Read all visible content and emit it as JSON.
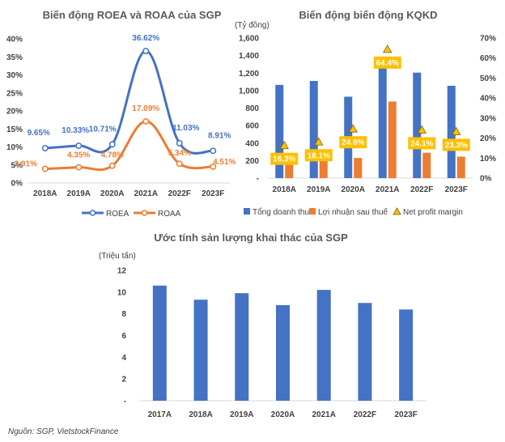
{
  "chart_data": [
    {
      "type": "line",
      "title": "Biến động ROEA và ROAA của SGP",
      "categories": [
        "2018A",
        "2019A",
        "2020A",
        "2021A",
        "2022F",
        "2023F"
      ],
      "y_ticks": [
        "0%",
        "5%",
        "10%",
        "15%",
        "20%",
        "25%",
        "30%",
        "35%",
        "40%"
      ],
      "ylim": [
        0,
        40
      ],
      "grid": false,
      "legend_position": "bottom",
      "series": [
        {
          "name": "ROEA",
          "color": "#4472C4",
          "values": [
            9.65,
            10.33,
            10.71,
            36.62,
            11.03,
            8.91
          ],
          "labels": [
            "9.65%",
            "10.33%",
            "10.71%",
            "36.62%",
            "11.03%",
            "8.91%"
          ]
        },
        {
          "name": "ROAA",
          "color": "#ED7D31",
          "values": [
            3.91,
            4.35,
            4.78,
            17.09,
            5.34,
            4.51
          ],
          "labels": [
            "3.91%",
            "4.35%",
            "4.78%",
            "17.09%",
            "5.34%",
            "4.51%"
          ]
        }
      ]
    },
    {
      "type": "bar",
      "title": "Biến động biến động KQKD",
      "unit_label": "(Tỷ đồng)",
      "categories": [
        "2018A",
        "2019A",
        "2020A",
        "2021A",
        "2022F",
        "2023F"
      ],
      "y_ticks": [
        "-",
        "200",
        "400",
        "600",
        "800",
        "1,000",
        "1,200",
        "1,400",
        "1,600"
      ],
      "ylim": [
        0,
        1600
      ],
      "y2_ticks": [
        "0%",
        "10%",
        "20%",
        "30%",
        "40%",
        "50%",
        "60%",
        "70%"
      ],
      "y2lim": [
        0,
        70
      ],
      "grid": false,
      "legend_position": "bottom",
      "series": [
        {
          "name": "Tổng doanh thu",
          "color": "#4472C4",
          "values": [
            1065,
            1110,
            930,
            1360,
            1205,
            1055
          ]
        },
        {
          "name": "Lợi nhuận sau thuế",
          "color": "#ED7D31",
          "values": [
            175,
            200,
            230,
            875,
            290,
            245
          ]
        },
        {
          "name": "Net profit margin",
          "color": "#FFC000",
          "axis": "right",
          "values": [
            16.3,
            18.1,
            24.6,
            64.4,
            24.1,
            23.3
          ],
          "labels": [
            "16.3%",
            "18.1%",
            "24.6%",
            "64.4%",
            "24.1%",
            "23.3%"
          ]
        }
      ]
    },
    {
      "type": "bar",
      "title": "Ước tính sản lượng khai thác của SGP",
      "unit_label": "(Triệu tấn)",
      "categories": [
        "2017A",
        "2018A",
        "2019A",
        "2020A",
        "2021A",
        "2022F",
        "2023F"
      ],
      "y_ticks": [
        "-",
        "2",
        "4",
        "6",
        "8",
        "10",
        "12"
      ],
      "ylim": [
        0,
        12
      ],
      "grid": false,
      "series": [
        {
          "name": "",
          "color": "#4472C4",
          "values": [
            10.6,
            9.3,
            9.9,
            8.8,
            10.2,
            9.0,
            8.4
          ]
        }
      ]
    }
  ],
  "source": "Nguồn: SGP, VietstockFinance"
}
